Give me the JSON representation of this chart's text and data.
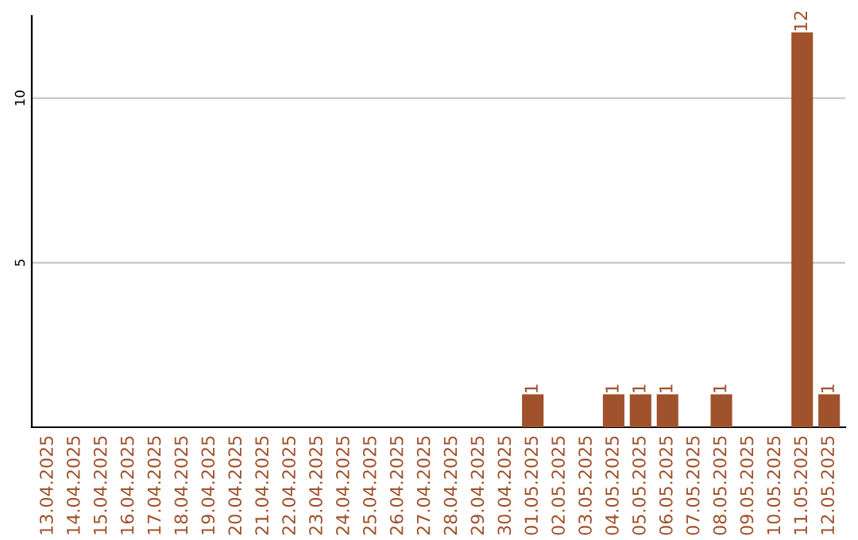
{
  "chart_data": {
    "type": "bar",
    "categories": [
      "13.04.2025",
      "14.04.2025",
      "15.04.2025",
      "16.04.2025",
      "17.04.2025",
      "18.04.2025",
      "19.04.2025",
      "20.04.2025",
      "21.04.2025",
      "22.04.2025",
      "23.04.2025",
      "24.04.2025",
      "25.04.2025",
      "26.04.2025",
      "27.04.2025",
      "28.04.2025",
      "29.04.2025",
      "30.04.2025",
      "01.05.2025",
      "02.05.2025",
      "03.05.2025",
      "04.05.2025",
      "05.05.2025",
      "06.05.2025",
      "07.05.2025",
      "08.05.2025",
      "09.05.2025",
      "10.05.2025",
      "11.05.2025",
      "12.05.2025"
    ],
    "values": [
      0,
      0,
      0,
      0,
      0,
      0,
      0,
      0,
      0,
      0,
      0,
      0,
      0,
      0,
      0,
      0,
      0,
      0,
      1,
      0,
      0,
      1,
      1,
      1,
      0,
      1,
      0,
      0,
      12,
      1
    ],
    "value_labels": [
      null,
      null,
      null,
      null,
      null,
      null,
      null,
      null,
      null,
      null,
      null,
      null,
      null,
      null,
      null,
      null,
      null,
      null,
      "1",
      null,
      null,
      "1",
      "1",
      "1",
      null,
      "1",
      null,
      null,
      "12",
      "1"
    ],
    "color": "#a0522d",
    "ylim": [
      0,
      12.5
    ],
    "yticks": [
      5,
      10
    ],
    "grid": "y"
  }
}
